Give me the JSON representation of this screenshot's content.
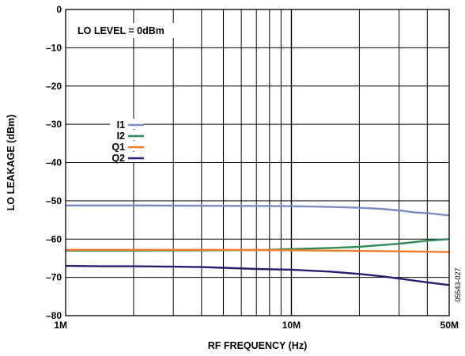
{
  "chart_data": {
    "type": "line",
    "xlabel": "RF FREQUENCY (Hz)",
    "ylabel": "LO LEAKAGE (dBm)",
    "x_scale": "log",
    "xlim": [
      1000000,
      50000000
    ],
    "ylim": [
      -80,
      0
    ],
    "x_ticks": [
      {
        "value": 1000000,
        "label": "1M"
      },
      {
        "value": 10000000,
        "label": "10M"
      },
      {
        "value": 50000000,
        "label": "50M"
      }
    ],
    "y_ticks": [
      {
        "value": 0,
        "label": "0"
      },
      {
        "value": -10,
        "label": "–10"
      },
      {
        "value": -20,
        "label": "–20"
      },
      {
        "value": -30,
        "label": "–30"
      },
      {
        "value": -40,
        "label": "–40"
      },
      {
        "value": -50,
        "label": "–50"
      },
      {
        "value": -60,
        "label": "–60"
      },
      {
        "value": -70,
        "label": "–70"
      },
      {
        "value": -80,
        "label": "–80"
      }
    ],
    "grid": true,
    "annotation": "LO LEVEL = 0dBm",
    "figure_code": "05543-027",
    "legend_position": "left-middle",
    "series": [
      {
        "name": "I1",
        "color": "#7b8cc0",
        "x": [
          1000000,
          2000000,
          5000000,
          10000000,
          15000000,
          20000000,
          25000000,
          30000000,
          35000000,
          40000000,
          50000000
        ],
        "y": [
          -51.2,
          -51.2,
          -51.3,
          -51.4,
          -51.6,
          -51.8,
          -52.1,
          -52.5,
          -53.0,
          -53.2,
          -53.8
        ]
      },
      {
        "name": "I2",
        "color": "#2e8b57",
        "x": [
          1000000,
          2000000,
          5000000,
          8000000,
          10000000,
          15000000,
          20000000,
          30000000,
          40000000,
          50000000
        ],
        "y": [
          -63.0,
          -63.0,
          -62.9,
          -62.8,
          -62.6,
          -62.3,
          -62.0,
          -61.2,
          -60.4,
          -60.0
        ]
      },
      {
        "name": "Q1",
        "color": "#f07c28",
        "x": [
          1000000,
          2000000,
          5000000,
          10000000,
          15000000,
          20000000,
          30000000,
          40000000,
          50000000
        ],
        "y": [
          -62.8,
          -62.8,
          -62.8,
          -62.9,
          -63.0,
          -63.1,
          -63.2,
          -63.3,
          -63.4
        ]
      },
      {
        "name": "Q2",
        "color": "#2b1d6e",
        "x": [
          1000000,
          1500000,
          2000000,
          3000000,
          4000000,
          5000000,
          7000000,
          10000000,
          15000000,
          20000000,
          25000000,
          30000000,
          40000000,
          50000000
        ],
        "y": [
          -67.0,
          -67.1,
          -67.1,
          -67.2,
          -67.3,
          -67.5,
          -67.8,
          -68.0,
          -68.5,
          -69.1,
          -69.7,
          -70.3,
          -71.3,
          -72.0
        ]
      }
    ]
  }
}
